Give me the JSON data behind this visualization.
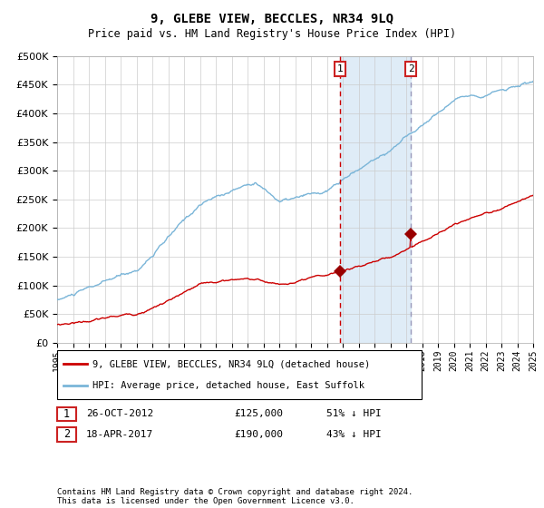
{
  "title": "9, GLEBE VIEW, BECCLES, NR34 9LQ",
  "subtitle": "Price paid vs. HM Land Registry's House Price Index (HPI)",
  "legend_line1": "9, GLEBE VIEW, BECCLES, NR34 9LQ (detached house)",
  "legend_line2": "HPI: Average price, detached house, East Suffolk",
  "transaction1_date": "26-OCT-2012",
  "transaction1_price": 125000,
  "transaction1_hpi_pct": "51% ↓ HPI",
  "transaction2_date": "18-APR-2017",
  "transaction2_price": 190000,
  "transaction2_hpi_pct": "43% ↓ HPI",
  "footer": "Contains HM Land Registry data © Crown copyright and database right 2024.\nThis data is licensed under the Open Government Licence v3.0.",
  "hpi_color": "#7ab5d8",
  "price_color": "#cc0000",
  "marker_color": "#990000",
  "vline1_color": "#cc0000",
  "vline2_color": "#9999bb",
  "shade_color": "#d8e8f5",
  "grid_color": "#cccccc",
  "ylim": [
    0,
    500000
  ],
  "yticks": [
    0,
    50000,
    100000,
    150000,
    200000,
    250000,
    300000,
    350000,
    400000,
    450000,
    500000
  ],
  "year_start": 1995,
  "year_end": 2025,
  "transaction1_year": 2012.82,
  "transaction2_year": 2017.3,
  "background_color": "#ffffff",
  "box_color": "#cc2222"
}
